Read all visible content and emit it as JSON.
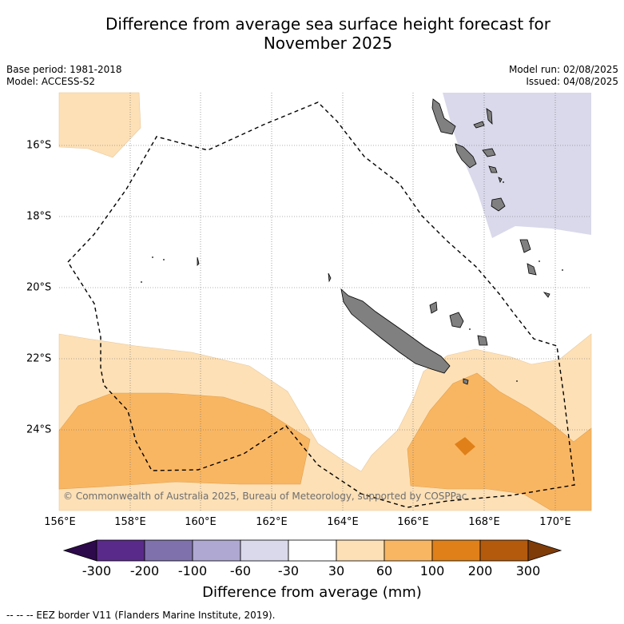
{
  "header": {
    "title_line1": "Difference from average sea surface height forecast for",
    "title_line2": "November 2025",
    "base_period": "Base period: 1981-2018",
    "model": "Model: ACCESS-S2",
    "model_run": "Model run: 02/08/2025",
    "issued": "Issued: 04/08/2025"
  },
  "map": {
    "x_ticks": [
      "156°E",
      "158°E",
      "160°E",
      "162°E",
      "164°E",
      "166°E",
      "168°E",
      "170°E"
    ],
    "y_ticks": [
      "16°S",
      "18°S",
      "20°S",
      "22°S",
      "24°S"
    ],
    "copyright": "© Commonwealth of Australia 2025, Bureau of Meteorology, supported by COSPPac",
    "land_color": "#808080",
    "eez_style": "dashed black line"
  },
  "colorbar": {
    "labels": [
      "-300",
      "-200",
      "-100",
      "-60",
      "-30",
      "30",
      "60",
      "100",
      "200",
      "300"
    ],
    "colors": [
      "#2d0a4b",
      "#5a2a8a",
      "#7f72ac",
      "#aea8d2",
      "#d9d9eb",
      "#ffffff",
      "#fde0b6",
      "#f9b662",
      "#e08018",
      "#b35a0d",
      "#7f3b08"
    ],
    "title": "Difference from average (mm)"
  },
  "footnote": "--  --  -- EEZ border V11 (Flanders Marine Institute, 2019)."
}
